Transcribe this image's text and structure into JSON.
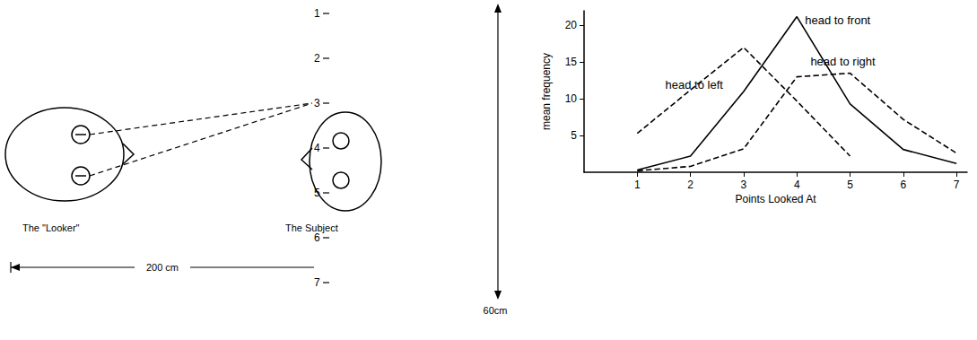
{
  "diagram": {
    "looker_label": "The \"Looker\"",
    "subject_label": "The Subject",
    "distance_label": "200 cm",
    "height_label": "60cm",
    "points": [
      1,
      2,
      3,
      4,
      5,
      6,
      7
    ],
    "looked_at_point": 3
  },
  "chart_data": {
    "type": "line",
    "x_label": "Points Looked At",
    "y_label": "mean frequency",
    "x": [
      1,
      2,
      3,
      4,
      5,
      6,
      7
    ],
    "series": [
      {
        "name": "head to left",
        "color": "#000000",
        "line_style": "dashed",
        "values": [
          5.3,
          11.2,
          17,
          9.7,
          2.2,
          null,
          null
        ]
      },
      {
        "name": "head to front",
        "color": "#000000",
        "line_style": "solid",
        "values": [
          0.3,
          2.2,
          11,
          21.2,
          9.3,
          3.1,
          1.2
        ]
      },
      {
        "name": "head to right",
        "color": "#000000",
        "line_style": "dashed",
        "values": [
          0.2,
          0.8,
          3.2,
          13,
          13.5,
          7.2,
          2.6
        ]
      }
    ],
    "xlim": [
      0,
      7.2
    ],
    "xticks": [
      1,
      2,
      3,
      4,
      5,
      6,
      7
    ],
    "ylim": [
      0,
      22
    ],
    "yticks": [
      5,
      10,
      15,
      20
    ],
    "grid": false,
    "marker": "none"
  }
}
